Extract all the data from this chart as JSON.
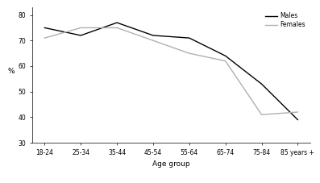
{
  "age_groups": [
    "18-24",
    "25-34",
    "35-44",
    "45-54",
    "55-64",
    "65-74",
    "75-84",
    "85 years +"
  ],
  "males": [
    75,
    72,
    77,
    72,
    71,
    64,
    53,
    39
  ],
  "females": [
    71,
    75,
    75,
    70,
    65,
    62,
    41,
    42
  ],
  "males_color": "#000000",
  "females_color": "#b0b0b0",
  "males_label": "Males",
  "females_label": "Females",
  "xlabel": "Age group",
  "ylabel": "%",
  "ylim": [
    30,
    83
  ],
  "yticks": [
    30,
    40,
    50,
    60,
    70,
    80
  ],
  "background_color": "#ffffff",
  "line_width": 1.0
}
